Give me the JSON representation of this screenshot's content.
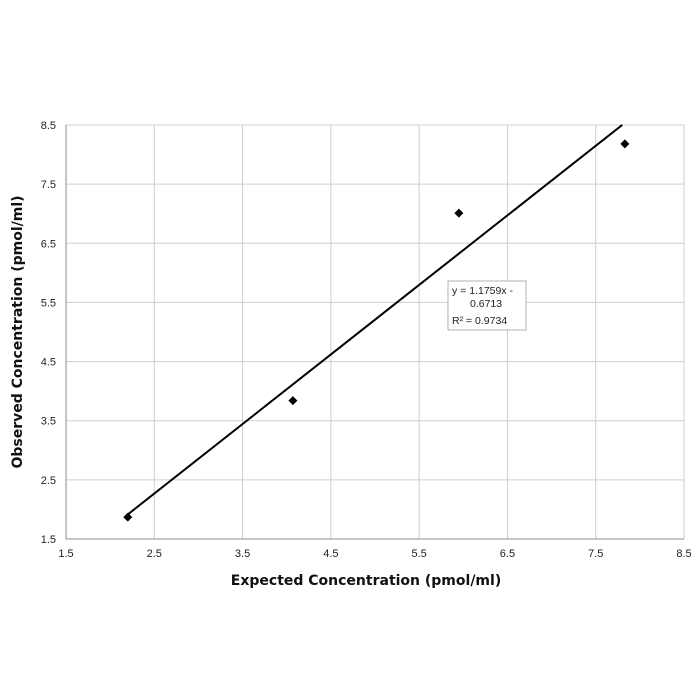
{
  "chart_data": {
    "type": "scatter",
    "xlabel": "Expected Concentration (pmol/ml)",
    "ylabel": "Observed Concentration (pmol/ml)",
    "xlim": [
      1.5,
      8.5
    ],
    "ylim": [
      1.5,
      8.5
    ],
    "x_ticks": [
      "1.5",
      "2.5",
      "3.5",
      "4.5",
      "5.5",
      "6.5",
      "7.5",
      "8.5"
    ],
    "y_ticks": [
      "1.5",
      "2.5",
      "3.5",
      "4.5",
      "5.5",
      "6.5",
      "7.5",
      "8.5"
    ],
    "grid": true,
    "series": [
      {
        "x": [
          2.2,
          4.07,
          5.95,
          7.83
        ],
        "y": [
          1.87,
          3.84,
          7.01,
          8.18
        ],
        "marker": "diamond",
        "color": "#000000"
      }
    ],
    "trendline": {
      "slope": 1.1759,
      "intercept": -0.6713,
      "x_range": [
        2.2,
        7.8
      ],
      "color": "#000000"
    },
    "annotation": {
      "line1": "y = 1.1759x -",
      "line2": "0.6713",
      "line3": "R² = 0.9734"
    }
  }
}
